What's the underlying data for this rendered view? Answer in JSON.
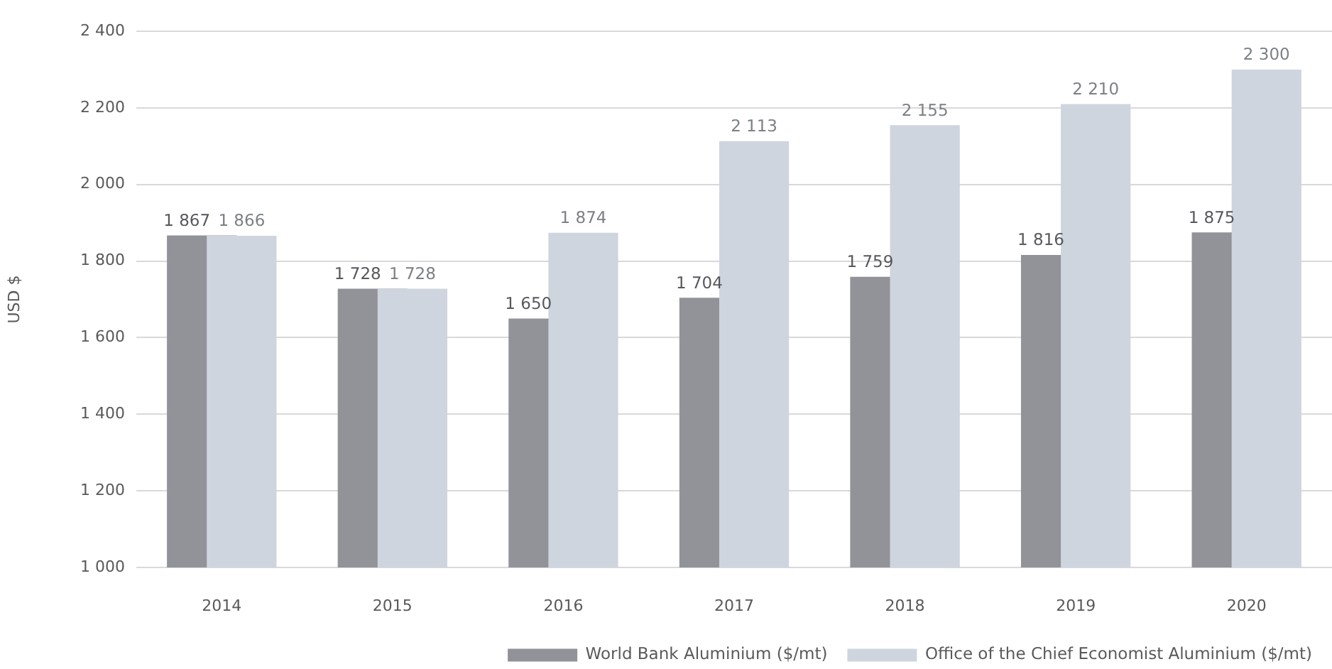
{
  "chart_data": {
    "type": "bar",
    "categories": [
      "2014",
      "2015",
      "2016",
      "2017",
      "2018",
      "2019",
      "2020"
    ],
    "ylabel": "USD $",
    "series": [
      {
        "name": "World Bank Aluminium ($/mt)",
        "color": "#919399",
        "values": [
          1867,
          1728,
          1650,
          1704,
          1759,
          1816,
          1875
        ],
        "value_labels": [
          "1 867",
          "1 728",
          "1 650",
          "1 704",
          "1 759",
          "1 816",
          "1 875"
        ]
      },
      {
        "name": "Office of the Chief Economist Aluminium ($/mt)",
        "color": "#cfd5de",
        "values": [
          1866,
          1728,
          1874,
          2113,
          2155,
          2210,
          2300
        ],
        "value_labels": [
          "1 866",
          "1 728",
          "1 874",
          "2 113",
          "2 155",
          "2 210",
          "2 300"
        ]
      }
    ],
    "ylim": [
      1000,
      2400
    ],
    "yticks": [
      {
        "value": 1000,
        "label": "1 000"
      },
      {
        "value": 1200,
        "label": "1 200"
      },
      {
        "value": 1400,
        "label": "1 400"
      },
      {
        "value": 1600,
        "label": "1 600"
      },
      {
        "value": 1800,
        "label": "1 800"
      },
      {
        "value": 2000,
        "label": "2 000"
      },
      {
        "value": 2200,
        "label": "2 200"
      },
      {
        "value": 2400,
        "label": "2 400"
      }
    ],
    "grid": "y",
    "legend": "bottom right"
  }
}
